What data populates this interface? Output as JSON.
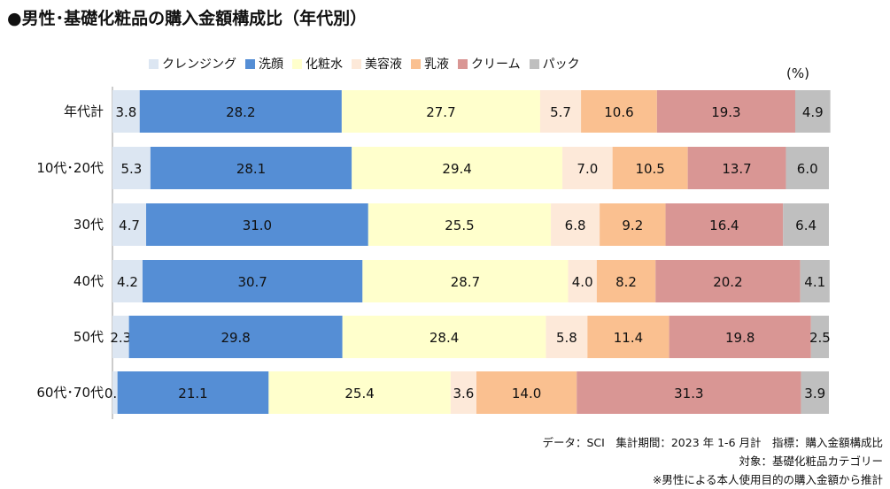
{
  "title": "●男性･基礎化粧品の購入金額構成比（年代別）",
  "unit": "(%)",
  "chart_data": {
    "type": "bar",
    "orientation": "horizontal",
    "stacked": true,
    "title": "●男性･基礎化粧品の購入金額構成比（年代別）",
    "unit_label": "(%)",
    "legend_position": "top",
    "xlim": [
      0,
      100
    ],
    "categories": [
      "年代計",
      "10代･20代",
      "30代",
      "40代",
      "50代",
      "60代･70代"
    ],
    "series": [
      {
        "name": "クレンジング",
        "color": "#dce6f2",
        "values": [
          3.8,
          5.3,
          4.7,
          4.2,
          2.3,
          0.7
        ]
      },
      {
        "name": "洗顔",
        "color": "#558ed5",
        "values": [
          28.2,
          28.1,
          31.0,
          30.7,
          29.8,
          21.1
        ]
      },
      {
        "name": "化粧水",
        "color": "#ffffcc",
        "values": [
          27.7,
          29.4,
          25.5,
          28.7,
          28.4,
          25.4
        ]
      },
      {
        "name": "美容液",
        "color": "#fde9d9",
        "values": [
          5.7,
          7.0,
          6.8,
          4.0,
          5.8,
          3.6
        ]
      },
      {
        "name": "乳液",
        "color": "#fac090",
        "values": [
          10.6,
          10.5,
          9.2,
          8.2,
          11.4,
          14.0
        ]
      },
      {
        "name": "クリーム",
        "color": "#d99694",
        "values": [
          19.3,
          13.7,
          16.4,
          20.2,
          19.8,
          31.3
        ]
      },
      {
        "name": "パック",
        "color": "#bfbfbf",
        "values": [
          4.9,
          6.0,
          6.4,
          4.1,
          2.5,
          3.9
        ]
      }
    ]
  },
  "footnotes": {
    "line1": "データ：SCI　集計期間：2023 年 1-6 月計　指標：購入金額構成比",
    "line2": "対象：基礎化粧品カテゴリー",
    "line3": "※男性による本人使用目的の購入金額から推計"
  }
}
